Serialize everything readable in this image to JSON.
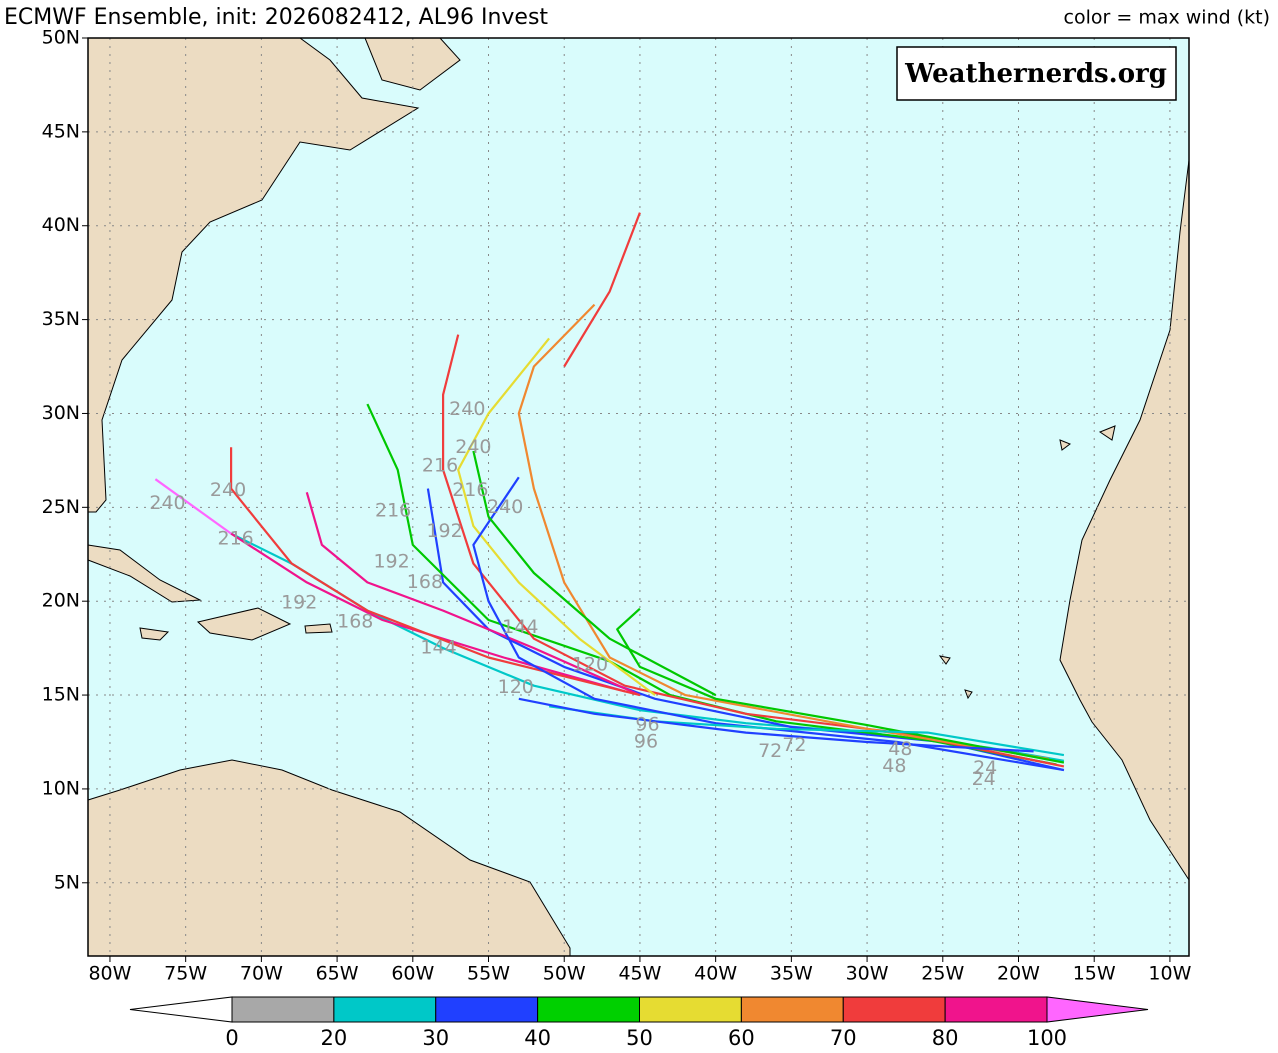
{
  "header": {
    "title": "ECMWF Ensemble, init: 2026082412, AL96 Invest",
    "legend_note": "color = max wind (kt)"
  },
  "watermark": "Weathernerds.org",
  "map": {
    "lon_range": [
      -81.45,
      -8.74
    ],
    "lat_range": [
      1.1,
      50
    ],
    "ocean_color": "#d9fcfc",
    "grid": true,
    "lon_ticks": [
      {
        "value": -80,
        "label": "80W"
      },
      {
        "value": -75,
        "label": "75W"
      },
      {
        "value": -70,
        "label": "70W"
      },
      {
        "value": -65,
        "label": "65W"
      },
      {
        "value": -60,
        "label": "60W"
      },
      {
        "value": -55,
        "label": "55W"
      },
      {
        "value": -50,
        "label": "50W"
      },
      {
        "value": -45,
        "label": "45W"
      },
      {
        "value": -40,
        "label": "40W"
      },
      {
        "value": -35,
        "label": "35W"
      },
      {
        "value": -30,
        "label": "30W"
      },
      {
        "value": -25,
        "label": "25W"
      },
      {
        "value": -20,
        "label": "20W"
      },
      {
        "value": -15,
        "label": "15W"
      },
      {
        "value": -10,
        "label": "10W"
      }
    ],
    "lat_ticks": [
      {
        "value": 5,
        "label": "5N"
      },
      {
        "value": 10,
        "label": "10N"
      },
      {
        "value": 15,
        "label": "15N"
      },
      {
        "value": 20,
        "label": "20N"
      },
      {
        "value": 25,
        "label": "25N"
      },
      {
        "value": 30,
        "label": "30N"
      },
      {
        "value": 35,
        "label": "35N"
      },
      {
        "value": 40,
        "label": "40N"
      },
      {
        "value": 45,
        "label": "45N"
      },
      {
        "value": 50,
        "label": "50N"
      }
    ]
  },
  "tracks": [
    {
      "color": "#00c8c8",
      "points": [
        [
          -17,
          11.5
        ],
        [
          -22,
          12.2
        ],
        [
          -30,
          13
        ],
        [
          -38,
          13.5
        ],
        [
          -45,
          14.2
        ],
        [
          -52,
          15.5
        ],
        [
          -58,
          17.5
        ],
        [
          -63,
          19.5
        ],
        [
          -68,
          22
        ],
        [
          -72,
          23.6
        ]
      ]
    },
    {
      "color": "#2040ff",
      "points": [
        [
          -17,
          11
        ],
        [
          -25,
          12.5
        ],
        [
          -35,
          13.3
        ],
        [
          -44,
          14.8
        ],
        [
          -50,
          16.5
        ],
        [
          -55,
          18.5
        ],
        [
          -58,
          21
        ],
        [
          -59,
          26
        ]
      ]
    },
    {
      "color": "#00c800",
      "points": [
        [
          -17.5,
          11.3
        ],
        [
          -26,
          12.6
        ],
        [
          -36,
          13.6
        ],
        [
          -43,
          15
        ],
        [
          -47,
          16.8
        ],
        [
          -55,
          19
        ],
        [
          -60,
          23
        ],
        [
          -61,
          27
        ],
        [
          -63,
          30.5
        ]
      ]
    },
    {
      "color": "#f03c3c",
      "points": [
        [
          -17,
          11.2
        ],
        [
          -28,
          13
        ],
        [
          -38,
          14
        ],
        [
          -46,
          15.5
        ],
        [
          -52,
          18
        ],
        [
          -56,
          22
        ],
        [
          -58,
          27
        ],
        [
          -58,
          31
        ],
        [
          -57,
          34.2
        ]
      ]
    },
    {
      "color": "#f08830",
      "points": [
        [
          -18,
          11.6
        ],
        [
          -30,
          13.2
        ],
        [
          -42,
          15
        ],
        [
          -47,
          17
        ],
        [
          -50,
          21
        ],
        [
          -52,
          26
        ],
        [
          -53,
          30
        ],
        [
          -52,
          32.5
        ],
        [
          -48,
          35.8
        ]
      ]
    },
    {
      "color": "#00c800",
      "points": [
        [
          -17,
          11.4
        ],
        [
          -30,
          13.4
        ],
        [
          -40,
          14.8
        ],
        [
          -45,
          16.5
        ],
        [
          -46.5,
          18.5
        ],
        [
          -45,
          19.6
        ]
      ]
    },
    {
      "color": "#f03c3c",
      "points": [
        [
          -50,
          32.5
        ],
        [
          -47,
          36.5
        ],
        [
          -45,
          40.7
        ]
      ]
    },
    {
      "color": "#e6dc32",
      "points": [
        [
          -44,
          15
        ],
        [
          -49,
          18
        ],
        [
          -53,
          21
        ],
        [
          -56,
          24
        ],
        [
          -57,
          27
        ],
        [
          -55,
          30
        ],
        [
          -51,
          34
        ]
      ]
    },
    {
      "color": "#f0148c",
      "points": [
        [
          -45,
          15
        ],
        [
          -52,
          17.5
        ],
        [
          -58,
          19.5
        ],
        [
          -63,
          21
        ],
        [
          -66,
          23
        ],
        [
          -67,
          25.8
        ]
      ]
    },
    {
      "color": "#f0148c",
      "points": [
        [
          -46,
          15.2
        ],
        [
          -54,
          17
        ],
        [
          -62,
          19
        ],
        [
          -67,
          21
        ],
        [
          -72,
          23.6
        ]
      ]
    },
    {
      "color": "#ff66ff",
      "points": [
        [
          -72,
          23.6
        ],
        [
          -77,
          26.5
        ]
      ]
    },
    {
      "color": "#f03c3c",
      "points": [
        [
          -45,
          15
        ],
        [
          -55,
          17
        ],
        [
          -63,
          19.5
        ],
        [
          -68,
          22
        ],
        [
          -72,
          26
        ],
        [
          -72,
          28.2
        ]
      ]
    },
    {
      "color": "#2040ff",
      "points": [
        [
          -17,
          11
        ],
        [
          -28,
          12.5
        ],
        [
          -40,
          13.5
        ],
        [
          -48,
          14.8
        ],
        [
          -53,
          17
        ],
        [
          -55,
          20
        ],
        [
          -56,
          23
        ],
        [
          -53,
          26.6
        ]
      ]
    },
    {
      "color": "#00c8c8",
      "points": [
        [
          -17,
          11.8
        ],
        [
          -26,
          13
        ],
        [
          -36,
          13.2
        ],
        [
          -44,
          13.6
        ],
        [
          -51,
          14.4
        ]
      ]
    },
    {
      "color": "#2040ff",
      "points": [
        [
          -19,
          12
        ],
        [
          -30,
          12.5
        ],
        [
          -38,
          13
        ],
        [
          -48,
          14
        ],
        [
          -53,
          14.8
        ]
      ]
    },
    {
      "color": "#00c800",
      "points": [
        [
          -40,
          15
        ],
        [
          -47,
          18
        ],
        [
          -52,
          21.5
        ],
        [
          -55,
          24.5
        ],
        [
          -56,
          28
        ]
      ]
    }
  ],
  "hour_labels": [
    {
      "label": "240",
      "lon": -72.2,
      "lat": 25.9
    },
    {
      "label": "240",
      "lon": -76.2,
      "lat": 25.2
    },
    {
      "label": "240",
      "lon": -56.4,
      "lat": 30.2
    },
    {
      "label": "240",
      "lon": -56.0,
      "lat": 28.2
    },
    {
      "label": "240",
      "lon": -53.9,
      "lat": 25.0
    },
    {
      "label": "216",
      "lon": -58.2,
      "lat": 27.2
    },
    {
      "label": "216",
      "lon": -56.2,
      "lat": 25.9
    },
    {
      "label": "216",
      "lon": -61.3,
      "lat": 24.8
    },
    {
      "label": "216",
      "lon": -71.7,
      "lat": 23.3
    },
    {
      "label": "192",
      "lon": -67.5,
      "lat": 19.9
    },
    {
      "label": "192",
      "lon": -57.9,
      "lat": 23.7
    },
    {
      "label": "192",
      "lon": -61.4,
      "lat": 22.1
    },
    {
      "label": "168",
      "lon": -63.8,
      "lat": 18.9
    },
    {
      "label": "168",
      "lon": -59.2,
      "lat": 21.0
    },
    {
      "label": "144",
      "lon": -58.3,
      "lat": 17.5
    },
    {
      "label": "144",
      "lon": -52.9,
      "lat": 18.6
    },
    {
      "label": "120",
      "lon": -53.2,
      "lat": 15.4
    },
    {
      "label": "120",
      "lon": -48.3,
      "lat": 16.6
    },
    {
      "label": "96",
      "lon": -44.6,
      "lat": 12.5
    },
    {
      "label": "96",
      "lon": -44.5,
      "lat": 13.4
    },
    {
      "label": "72",
      "lon": -36.4,
      "lat": 12.0
    },
    {
      "label": "72",
      "lon": -34.8,
      "lat": 12.3
    },
    {
      "label": "48",
      "lon": -28.2,
      "lat": 11.2
    },
    {
      "label": "48",
      "lon": -27.8,
      "lat": 12.1
    },
    {
      "label": "24",
      "lon": -22.3,
      "lat": 10.5
    },
    {
      "label": "24",
      "lon": -22.2,
      "lat": 11.1
    }
  ],
  "colorbar": {
    "ticks": [
      0,
      20,
      30,
      40,
      50,
      60,
      70,
      80,
      100
    ],
    "colors": [
      "#a8a8a8",
      "#00c8c8",
      "#2040ff",
      "#00d000",
      "#e6dc32",
      "#f08830",
      "#f03c3c",
      "#f0148c"
    ],
    "under_color": "#ffffff",
    "over_color": "#ff66ff"
  }
}
